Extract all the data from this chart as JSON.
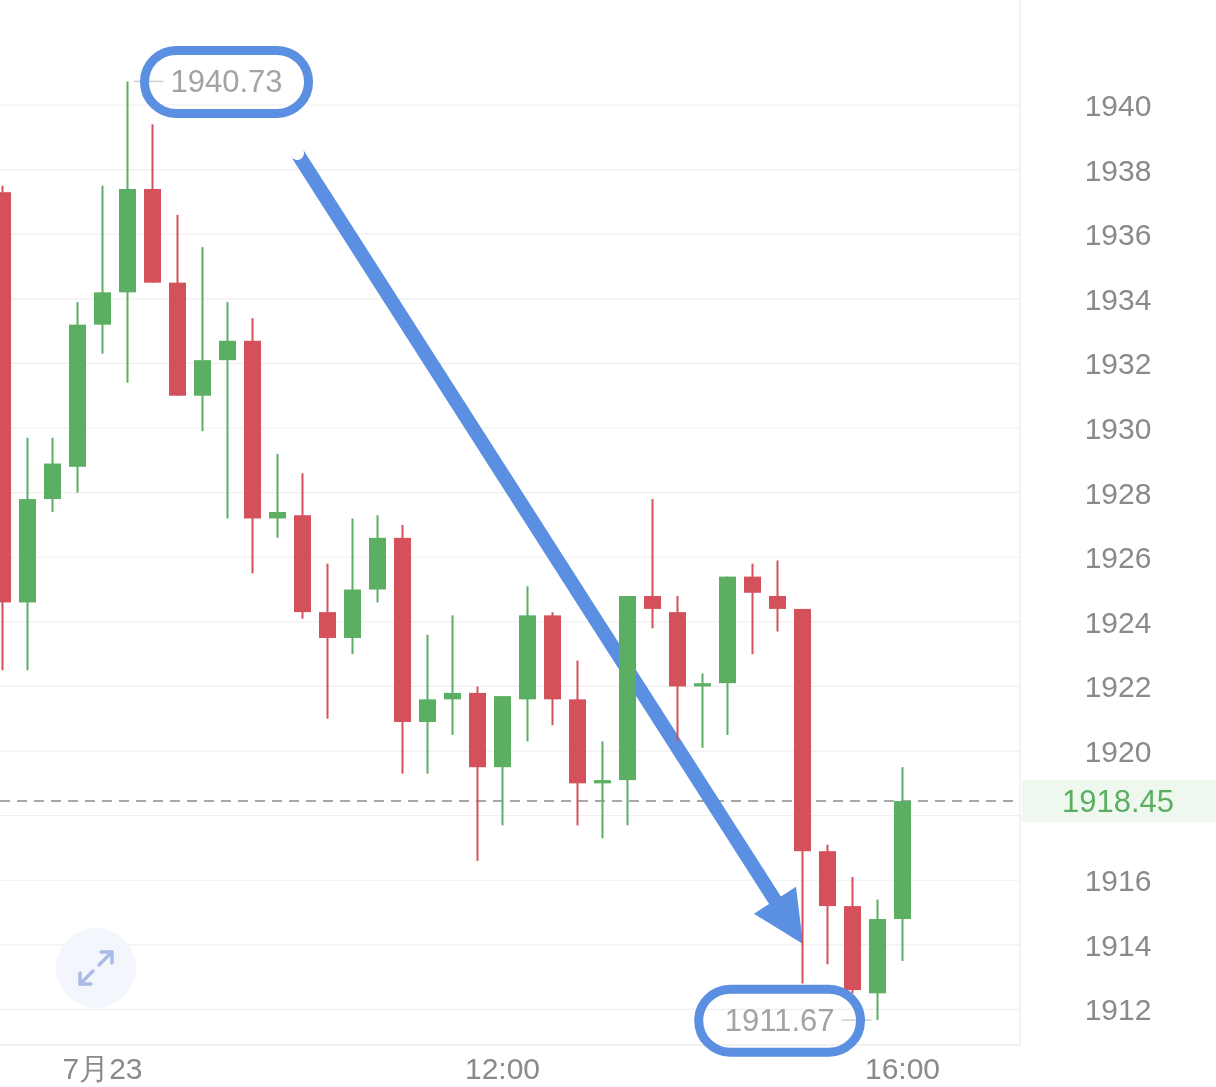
{
  "chart_data": {
    "type": "candlestick",
    "x": [
      7,
      7.25,
      7.5,
      7.75,
      8,
      8.25,
      8.5,
      8.75,
      9,
      9.25,
      9.5,
      9.75,
      10,
      10.25,
      10.5,
      10.75,
      11,
      11.25,
      11.5,
      11.75,
      12,
      12.25,
      12.5,
      12.75,
      13,
      13.25,
      13.5,
      13.75,
      14,
      14.25,
      14.5,
      14.75,
      15,
      15.25,
      15.5,
      15.75,
      16
    ],
    "xlim": [
      6.975,
      17.175
    ],
    "xticks": [
      {
        "value": 8,
        "label": "7月23"
      },
      {
        "value": 12,
        "label": "12:00"
      },
      {
        "value": 16,
        "label": "16:00"
      }
    ],
    "ohlc": [
      [
        1937.3,
        1937.5,
        1922.5,
        1924.6
      ],
      [
        1924.6,
        1929.7,
        1922.5,
        1927.8
      ],
      [
        1927.8,
        1929.7,
        1927.4,
        1928.9
      ],
      [
        1928.8,
        1933.9,
        1928.0,
        1933.2
      ],
      [
        1933.2,
        1937.5,
        1932.3,
        1934.2
      ],
      [
        1934.2,
        1940.73,
        1931.4,
        1937.4
      ],
      [
        1937.4,
        1939.4,
        1934.5,
        1934.5
      ],
      [
        1934.5,
        1936.6,
        1931.0,
        1931.0
      ],
      [
        1931.0,
        1935.6,
        1929.9,
        1932.1
      ],
      [
        1932.1,
        1933.9,
        1927.2,
        1932.7
      ],
      [
        1932.7,
        1933.4,
        1925.5,
        1927.2
      ],
      [
        1927.2,
        1929.2,
        1926.6,
        1927.4
      ],
      [
        1927.3,
        1928.6,
        1924.1,
        1924.3
      ],
      [
        1924.3,
        1925.8,
        1921.0,
        1923.5
      ],
      [
        1923.5,
        1927.2,
        1923.0,
        1925.0
      ],
      [
        1925.0,
        1927.3,
        1924.6,
        1926.6
      ],
      [
        1926.6,
        1927.0,
        1919.3,
        1920.9
      ],
      [
        1920.9,
        1923.6,
        1919.3,
        1921.6
      ],
      [
        1921.6,
        1924.2,
        1920.5,
        1921.8
      ],
      [
        1921.8,
        1922.0,
        1916.6,
        1919.5
      ],
      [
        1919.5,
        1921.7,
        1917.7,
        1921.7
      ],
      [
        1921.6,
        1925.1,
        1920.3,
        1924.2
      ],
      [
        1924.2,
        1924.3,
        1920.8,
        1921.6
      ],
      [
        1921.6,
        1922.8,
        1917.7,
        1919.0
      ],
      [
        1919.0,
        1920.3,
        1917.3,
        1919.1
      ],
      [
        1919.1,
        1924.8,
        1917.7,
        1924.8
      ],
      [
        1924.8,
        1927.8,
        1923.8,
        1924.4
      ],
      [
        1924.3,
        1924.8,
        1920.3,
        1922.0
      ],
      [
        1922.0,
        1922.4,
        1920.1,
        1922.1
      ],
      [
        1922.1,
        1925.4,
        1920.5,
        1925.4
      ],
      [
        1925.4,
        1925.8,
        1923.0,
        1924.9
      ],
      [
        1924.8,
        1925.9,
        1923.7,
        1924.4
      ],
      [
        1924.4,
        1924.4,
        1912.8,
        1916.9
      ],
      [
        1916.9,
        1917.1,
        1913.4,
        1915.2
      ],
      [
        1915.2,
        1916.1,
        1912.5,
        1912.6
      ],
      [
        1912.5,
        1915.4,
        1911.67,
        1914.8
      ],
      [
        1914.8,
        1919.5,
        1913.5,
        1918.45
      ]
    ],
    "colors": [
      "#d4515b",
      "#5bae62",
      "#5bae62",
      "#5bae62",
      "#5bae62",
      "#5bae62",
      "#d4515b",
      "#d4515b",
      "#5bae62",
      "#5bae62",
      "#d4515b",
      "#5bae62",
      "#d4515b",
      "#d4515b",
      "#5bae62",
      "#5bae62",
      "#d4515b",
      "#5bae62",
      "#5bae62",
      "#d4515b",
      "#5bae62",
      "#5bae62",
      "#d4515b",
      "#d4515b",
      "#5bae62",
      "#5bae62",
      "#d4515b",
      "#d4515b",
      "#5bae62",
      "#5bae62",
      "#d4515b",
      "#d4515b",
      "#d4515b",
      "#d4515b",
      "#d4515b",
      "#5bae62",
      "#5bae62"
    ],
    "ylim": [
      1910.9,
      1943.25
    ],
    "yticks": [
      1912,
      1914,
      1916,
      {
        "value": 1918,
        "label": null
      },
      1920,
      1922,
      1924,
      1926,
      1928,
      1930,
      1932,
      1934,
      1936,
      1938,
      1940
    ],
    "grid": "y",
    "ref_lines": [
      {
        "axis": "y",
        "value": 1918.45,
        "label": "1918.45",
        "color": "#a8a8a8",
        "line_style": "dashed"
      }
    ],
    "annotations": [
      "1940.73",
      "1911.67"
    ]
  }
}
